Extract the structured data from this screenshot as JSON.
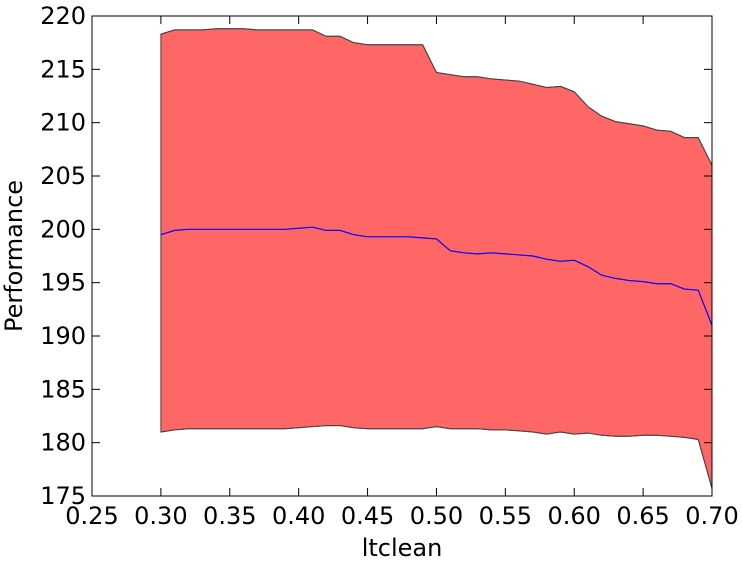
{
  "chart_data": {
    "type": "band_line",
    "xlabel": "ltclean",
    "ylabel": "Performance",
    "x": [
      0.3,
      0.31,
      0.32,
      0.33,
      0.34,
      0.35,
      0.36,
      0.37,
      0.38,
      0.39,
      0.4,
      0.41,
      0.42,
      0.43,
      0.44,
      0.45,
      0.46,
      0.47,
      0.48,
      0.49,
      0.5,
      0.51,
      0.52,
      0.53,
      0.54,
      0.55,
      0.56,
      0.57,
      0.58,
      0.59,
      0.6,
      0.61,
      0.62,
      0.63,
      0.64,
      0.65,
      0.66,
      0.67,
      0.68,
      0.69,
      0.7
    ],
    "series": [
      {
        "color": "#0000ff",
        "values": [
          199.5,
          199.9,
          200.0,
          200.0,
          200.0,
          200.0,
          200.0,
          200.0,
          200.0,
          200.0,
          200.1,
          200.2,
          199.9,
          199.9,
          199.5,
          199.3,
          199.3,
          199.3,
          199.3,
          199.2,
          199.1,
          198.0,
          197.8,
          197.7,
          197.8,
          197.7,
          197.6,
          197.5,
          197.2,
          197.0,
          197.1,
          196.5,
          195.7,
          195.4,
          195.2,
          195.1,
          194.9,
          194.9,
          194.4,
          194.3,
          191.0
        ]
      }
    ],
    "band": {
      "color": "#ff6666",
      "edge_color": "#444444",
      "upper": [
        218.3,
        218.7,
        218.7,
        218.7,
        218.8,
        218.8,
        218.8,
        218.7,
        218.7,
        218.7,
        218.7,
        218.7,
        218.1,
        218.1,
        217.5,
        217.3,
        217.3,
        217.3,
        217.3,
        217.3,
        214.7,
        214.5,
        214.3,
        214.3,
        214.1,
        214.0,
        213.9,
        213.6,
        213.3,
        213.4,
        212.9,
        211.5,
        210.6,
        210.1,
        209.9,
        209.7,
        209.3,
        209.2,
        208.6,
        208.6,
        206.0
      ],
      "lower": [
        181.0,
        181.2,
        181.3,
        181.3,
        181.3,
        181.3,
        181.3,
        181.3,
        181.3,
        181.3,
        181.4,
        181.5,
        181.6,
        181.6,
        181.4,
        181.3,
        181.3,
        181.3,
        181.3,
        181.3,
        181.5,
        181.3,
        181.3,
        181.3,
        181.2,
        181.2,
        181.1,
        181.0,
        180.8,
        181.0,
        180.8,
        180.9,
        180.7,
        180.6,
        180.6,
        180.7,
        180.7,
        180.6,
        180.5,
        180.3,
        175.7
      ]
    },
    "xlim": [
      0.25,
      0.7
    ],
    "xticks": [
      {
        "value": 0.25,
        "label": "0.25"
      },
      {
        "value": 0.3,
        "label": "0.30"
      },
      {
        "value": 0.35,
        "label": "0.35"
      },
      {
        "value": 0.4,
        "label": "0.40"
      },
      {
        "value": 0.45,
        "label": "0.45"
      },
      {
        "value": 0.5,
        "label": "0.50"
      },
      {
        "value": 0.55,
        "label": "0.55"
      },
      {
        "value": 0.6,
        "label": "0.60"
      },
      {
        "value": 0.65,
        "label": "0.65"
      },
      {
        "value": 0.7,
        "label": "0.70"
      }
    ],
    "ylim": [
      175,
      220
    ],
    "yticks": [
      175,
      180,
      185,
      190,
      195,
      200,
      205,
      210,
      215,
      220
    ]
  }
}
